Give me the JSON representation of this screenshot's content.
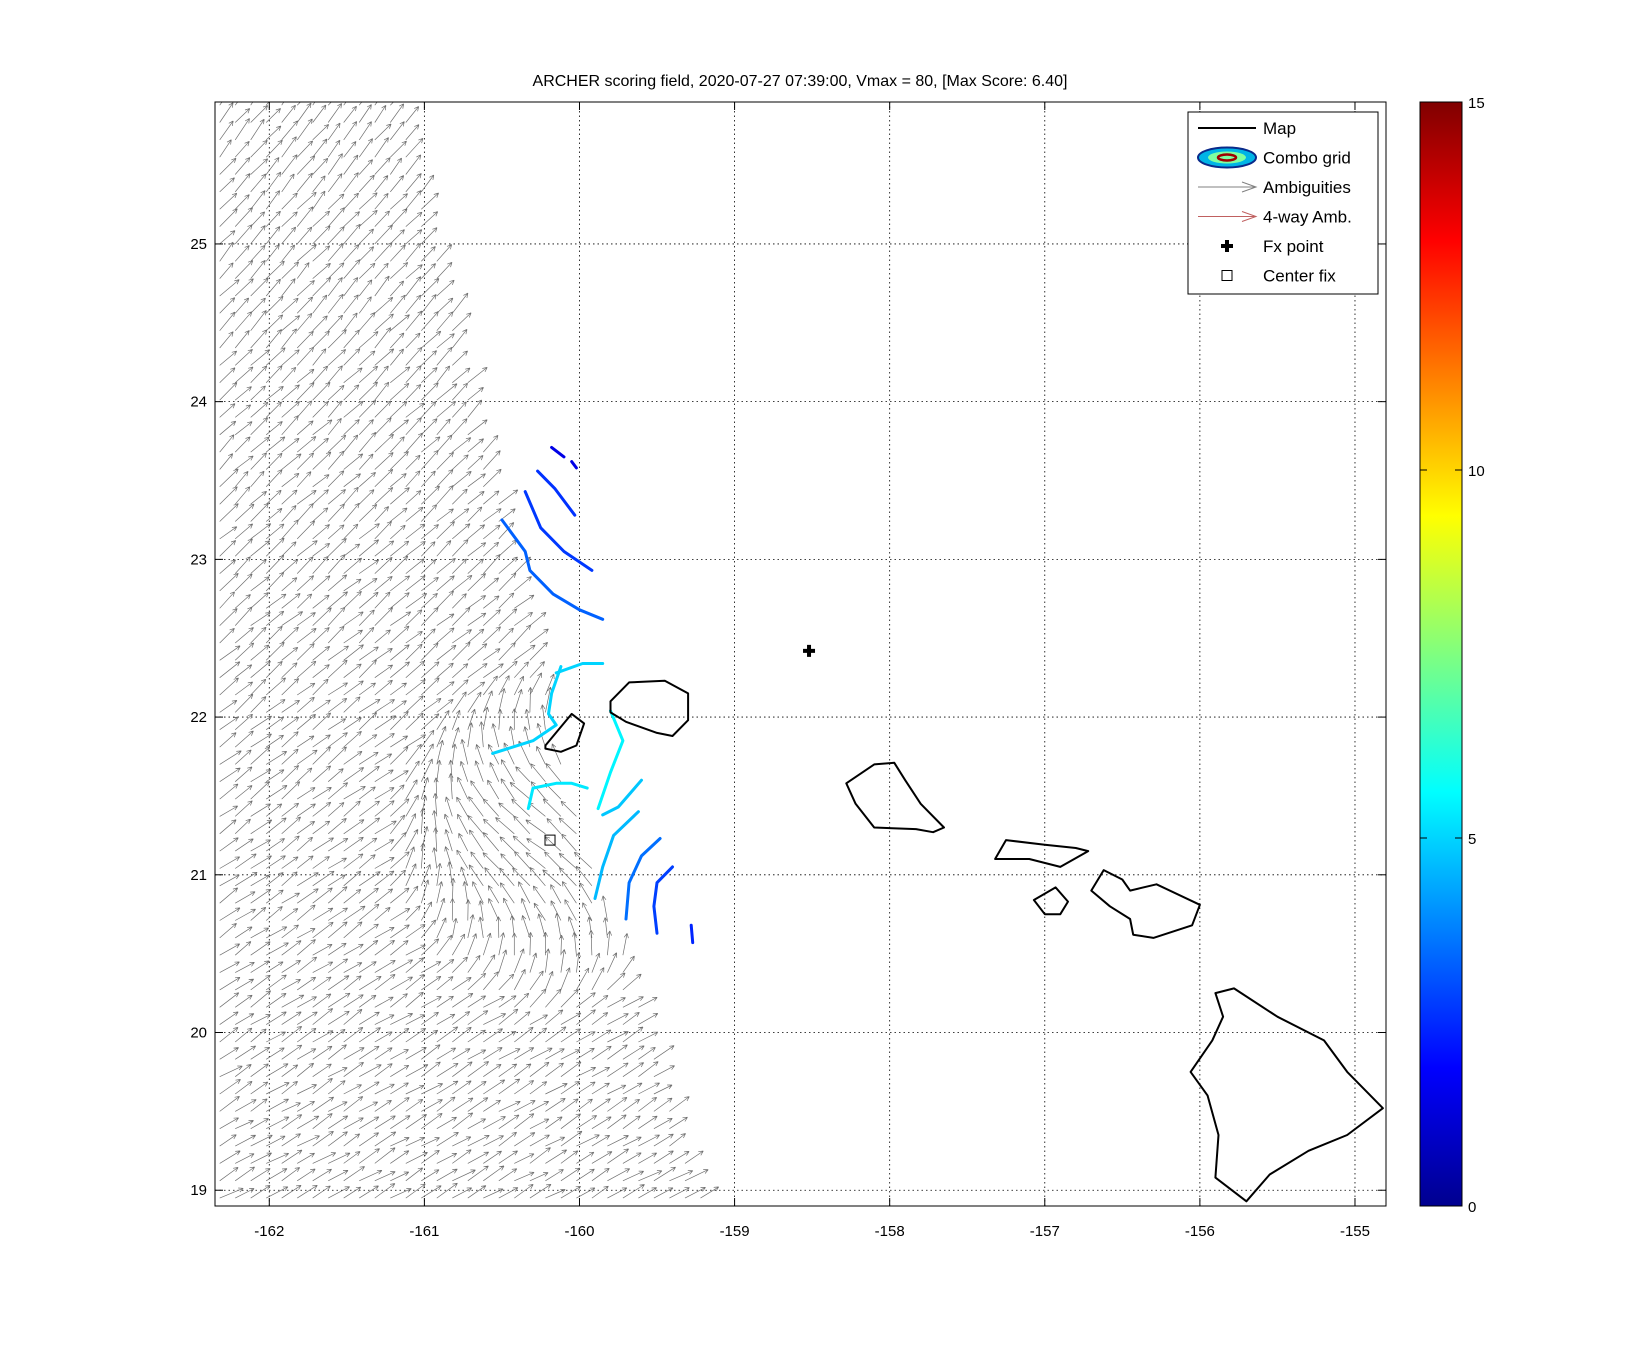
{
  "chart_data": {
    "type": "map-plot",
    "title": "ARCHER scoring field, 2020-07-27 07:39:00, Vmax = 80, [Max Score: 6.40]",
    "xlim": [
      -162.35,
      -154.8
    ],
    "ylim": [
      18.9,
      25.9
    ],
    "x_ticks": [
      -162,
      -161,
      -160,
      -159,
      -158,
      -157,
      -156,
      -155
    ],
    "y_ticks": [
      19,
      20,
      21,
      22,
      23,
      24,
      25
    ],
    "grid": true,
    "legend": {
      "placement": "top-right",
      "entries": [
        {
          "label": "Map",
          "kind": "line",
          "color": "#000000"
        },
        {
          "label": "Combo grid",
          "kind": "ellipses",
          "color": "#00008b"
        },
        {
          "label": "Ambiguities",
          "kind": "arrow",
          "color": "#808080"
        },
        {
          "label": "4-way Amb.",
          "kind": "arrow",
          "color": "#c06060"
        },
        {
          "label": "Fx point",
          "kind": "plus",
          "color": "#000000"
        },
        {
          "label": "Center fix",
          "kind": "square",
          "color": "#000000"
        }
      ]
    },
    "fx_point": {
      "lon": -158.52,
      "lat": 22.42
    },
    "center_fix": {
      "lon": -160.19,
      "lat": 21.22
    },
    "colorbar": {
      "range": [
        0,
        15
      ],
      "ticks": [
        0,
        5,
        10,
        15
      ],
      "colormap": "jet"
    },
    "swath": {
      "polygon": [
        [
          -162.35,
          25.9
        ],
        [
          -161.15,
          25.9
        ],
        [
          -160.05,
          21.5
        ],
        [
          -159.2,
          18.9
        ],
        [
          -162.35,
          18.9
        ]
      ],
      "lon_step": 0.1,
      "lat_step": 0.11
    },
    "islands": [
      {
        "name": "Niihau",
        "coords": [
          [
            -160.22,
            21.82
          ],
          [
            -160.05,
            22.02
          ],
          [
            -159.97,
            21.96
          ],
          [
            -160.02,
            21.82
          ],
          [
            -160.12,
            21.78
          ],
          [
            -160.22,
            21.8
          ]
        ]
      },
      {
        "name": "Kauai",
        "coords": [
          [
            -159.8,
            22.1
          ],
          [
            -159.68,
            22.22
          ],
          [
            -159.45,
            22.23
          ],
          [
            -159.3,
            22.15
          ],
          [
            -159.3,
            21.98
          ],
          [
            -159.4,
            21.88
          ],
          [
            -159.5,
            21.9
          ],
          [
            -159.7,
            21.97
          ],
          [
            -159.8,
            22.03
          ]
        ]
      },
      {
        "name": "Oahu",
        "coords": [
          [
            -158.28,
            21.58
          ],
          [
            -158.1,
            21.7
          ],
          [
            -157.97,
            21.71
          ],
          [
            -157.9,
            21.6
          ],
          [
            -157.8,
            21.45
          ],
          [
            -157.65,
            21.3
          ],
          [
            -157.72,
            21.27
          ],
          [
            -157.83,
            21.29
          ],
          [
            -158.1,
            21.3
          ],
          [
            -158.22,
            21.45
          ]
        ]
      },
      {
        "name": "Molokai",
        "coords": [
          [
            -157.32,
            21.1
          ],
          [
            -157.25,
            21.22
          ],
          [
            -157.0,
            21.19
          ],
          [
            -156.8,
            21.17
          ],
          [
            -156.72,
            21.15
          ],
          [
            -156.9,
            21.05
          ],
          [
            -157.1,
            21.1
          ]
        ]
      },
      {
        "name": "Lanai",
        "coords": [
          [
            -157.07,
            20.84
          ],
          [
            -156.93,
            20.92
          ],
          [
            -156.85,
            20.83
          ],
          [
            -156.9,
            20.75
          ],
          [
            -157.0,
            20.75
          ]
        ]
      },
      {
        "name": "Maui",
        "coords": [
          [
            -156.7,
            20.9
          ],
          [
            -156.62,
            21.03
          ],
          [
            -156.5,
            20.97
          ],
          [
            -156.45,
            20.9
          ],
          [
            -156.28,
            20.94
          ],
          [
            -156.0,
            20.81
          ],
          [
            -156.05,
            20.68
          ],
          [
            -156.3,
            20.6
          ],
          [
            -156.43,
            20.62
          ],
          [
            -156.45,
            20.72
          ],
          [
            -156.58,
            20.8
          ]
        ]
      },
      {
        "name": "Hawaii",
        "coords": [
          [
            -155.9,
            20.25
          ],
          [
            -155.78,
            20.28
          ],
          [
            -155.5,
            20.1
          ],
          [
            -155.2,
            19.95
          ],
          [
            -155.05,
            19.75
          ],
          [
            -154.82,
            19.52
          ],
          [
            -155.05,
            19.35
          ],
          [
            -155.3,
            19.25
          ],
          [
            -155.55,
            19.1
          ],
          [
            -155.7,
            18.93
          ],
          [
            -155.9,
            19.08
          ],
          [
            -155.88,
            19.35
          ],
          [
            -155.95,
            19.6
          ],
          [
            -156.06,
            19.75
          ],
          [
            -155.92,
            19.95
          ],
          [
            -155.85,
            20.1
          ]
        ]
      }
    ],
    "score_contours": [
      {
        "value": 1.5,
        "points": [
          [
            -160.18,
            23.71
          ],
          [
            -160.1,
            23.65
          ]
        ]
      },
      {
        "value": 1.5,
        "points": [
          [
            -160.05,
            23.62
          ],
          [
            -160.02,
            23.58
          ]
        ]
      },
      {
        "value": 2.6,
        "points": [
          [
            -160.27,
            23.56
          ],
          [
            -160.16,
            23.45
          ],
          [
            -160.03,
            23.28
          ]
        ]
      },
      {
        "value": 2.7,
        "points": [
          [
            -160.35,
            23.43
          ],
          [
            -160.25,
            23.2
          ],
          [
            -160.1,
            23.05
          ],
          [
            -159.92,
            22.93
          ]
        ]
      },
      {
        "value": 3.3,
        "points": [
          [
            -160.5,
            23.25
          ],
          [
            -160.35,
            23.05
          ],
          [
            -160.32,
            22.93
          ],
          [
            -160.17,
            22.78
          ],
          [
            -160.0,
            22.68
          ],
          [
            -159.85,
            22.62
          ]
        ]
      },
      {
        "value": 5.0,
        "points": [
          [
            -160.15,
            22.28
          ],
          [
            -159.98,
            22.34
          ],
          [
            -159.85,
            22.34
          ]
        ]
      },
      {
        "value": 5.0,
        "points": [
          [
            -160.12,
            22.32
          ],
          [
            -160.18,
            22.15
          ],
          [
            -160.2,
            22.02
          ],
          [
            -160.15,
            21.95
          ],
          [
            -160.3,
            21.85
          ],
          [
            -160.56,
            21.77
          ]
        ]
      },
      {
        "value": 5.5,
        "points": [
          [
            -159.8,
            22.04
          ],
          [
            -159.72,
            21.85
          ],
          [
            -159.8,
            21.65
          ],
          [
            -159.88,
            21.42
          ]
        ]
      },
      {
        "value": 5.3,
        "points": [
          [
            -160.33,
            21.42
          ],
          [
            -160.3,
            21.55
          ],
          [
            -160.15,
            21.58
          ],
          [
            -160.05,
            21.58
          ],
          [
            -159.95,
            21.55
          ]
        ]
      },
      {
        "value": 4.8,
        "points": [
          [
            -159.6,
            21.6
          ],
          [
            -159.75,
            21.43
          ],
          [
            -159.85,
            21.38
          ]
        ]
      },
      {
        "value": 4.6,
        "points": [
          [
            -159.62,
            21.4
          ],
          [
            -159.78,
            21.25
          ],
          [
            -159.85,
            21.05
          ],
          [
            -159.9,
            20.85
          ]
        ]
      },
      {
        "value": 3.5,
        "points": [
          [
            -159.48,
            21.23
          ],
          [
            -159.6,
            21.12
          ],
          [
            -159.68,
            20.95
          ],
          [
            -159.7,
            20.72
          ]
        ]
      },
      {
        "value": 2.8,
        "points": [
          [
            -159.4,
            21.05
          ],
          [
            -159.5,
            20.95
          ],
          [
            -159.52,
            20.8
          ],
          [
            -159.5,
            20.63
          ]
        ]
      },
      {
        "value": 2.4,
        "points": [
          [
            -159.28,
            20.68
          ],
          [
            -159.27,
            20.57
          ]
        ]
      }
    ]
  }
}
